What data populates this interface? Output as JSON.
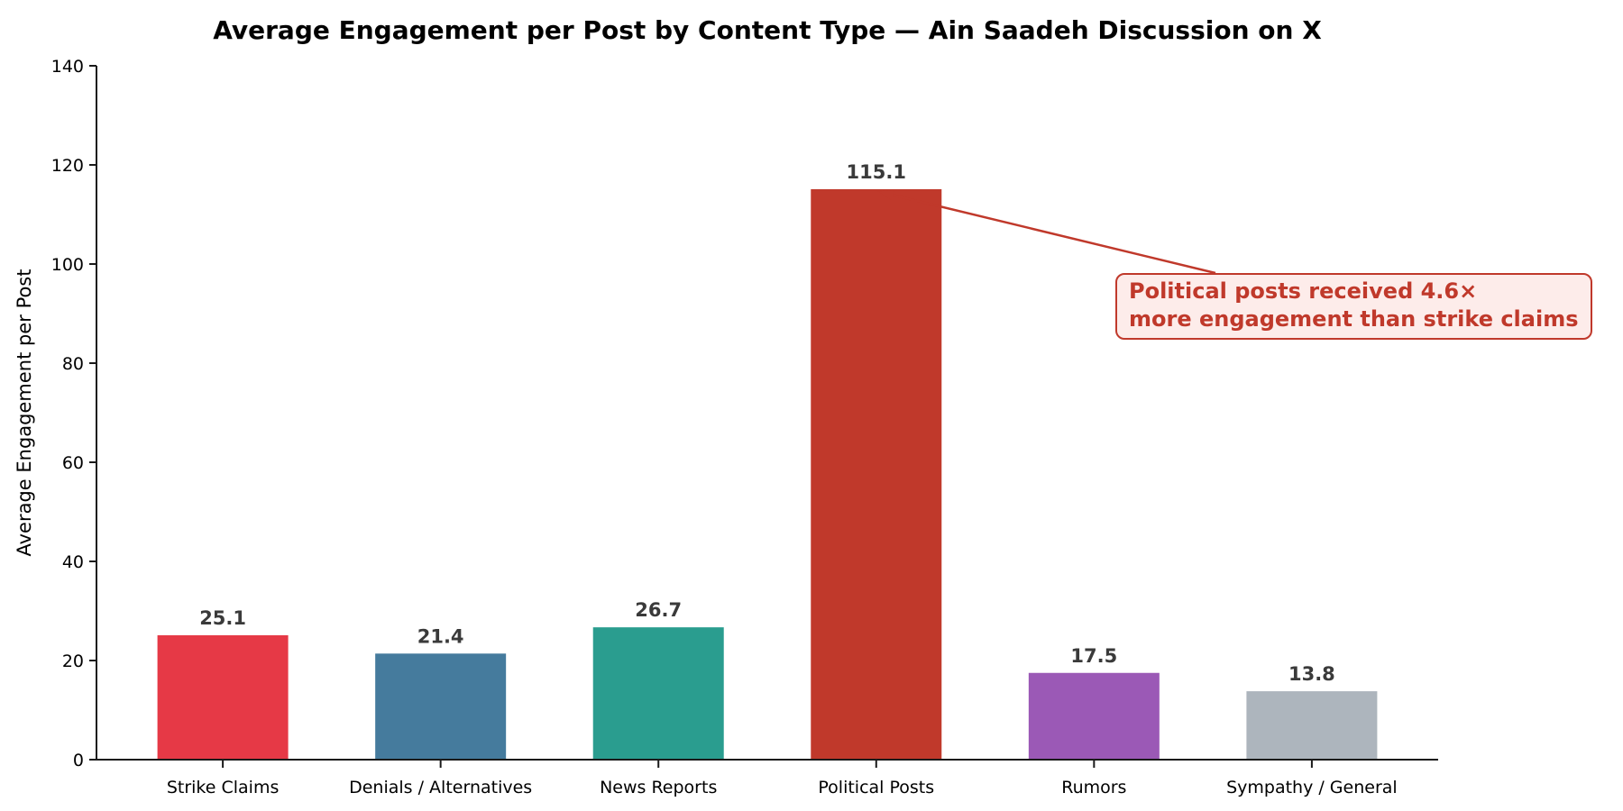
{
  "chart_data": {
    "type": "bar",
    "title": "Average Engagement per Post by Content Type — Ain Saadeh Discussion on X",
    "xlabel": "",
    "ylabel": "Average Engagement per Post",
    "categories": [
      "Strike Claims",
      "Denials / Alternatives",
      "News Reports",
      "Political Posts",
      "Rumors",
      "Sympathy / General"
    ],
    "values": [
      25.1,
      21.4,
      26.7,
      115.1,
      17.5,
      13.8
    ],
    "value_labels": [
      "25.1",
      "21.4",
      "26.7",
      "115.1",
      "17.5",
      "13.8"
    ],
    "bar_colors": [
      "#e63946",
      "#457b9d",
      "#2a9d8f",
      "#c0392b",
      "#9b59b6",
      "#adb5bd"
    ],
    "ylim": [
      0,
      140
    ],
    "yticks": [
      0,
      20,
      40,
      60,
      80,
      100,
      120,
      140
    ],
    "grid": false,
    "legend": null,
    "annotation": {
      "text_lines": [
        "Political posts received 4.6×",
        "more engagement than strike claims"
      ],
      "text_color": "#c0392b",
      "bg_color": "#fdecea",
      "border_color": "#c0392b",
      "arrow_color": "#c0392b",
      "points_to": "Political Posts"
    }
  },
  "colors": {
    "axis": "#1a1a1a",
    "tick_label": "#000000",
    "value_label": "#3a3a3a",
    "background": "#ffffff"
  }
}
